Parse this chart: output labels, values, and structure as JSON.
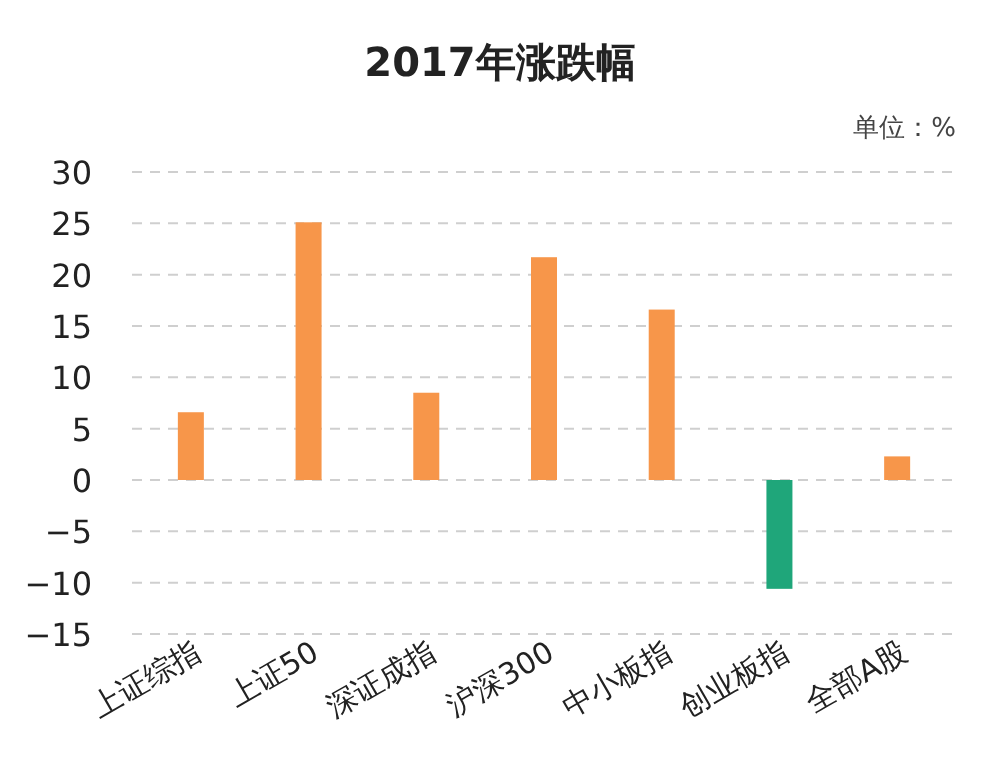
{
  "chart_data": {
    "type": "bar",
    "title": "2017年涨跌幅",
    "annotations": [
      "单位：%"
    ],
    "categories": [
      "上证综指",
      "上证50",
      "深证成指",
      "沪深300",
      "中小板指",
      "创业板指",
      "全部A股"
    ],
    "values": [
      6.6,
      25.1,
      8.5,
      21.7,
      16.6,
      -10.6,
      2.3
    ],
    "colors": [
      "#f7964a",
      "#f7964a",
      "#f7964a",
      "#f7964a",
      "#f7964a",
      "#1fa67a",
      "#f7964a"
    ],
    "ylim": [
      -15,
      30
    ],
    "yticks": [
      -15,
      -10,
      -5,
      0,
      5,
      10,
      15,
      20,
      25,
      30
    ],
    "grid": "y"
  }
}
